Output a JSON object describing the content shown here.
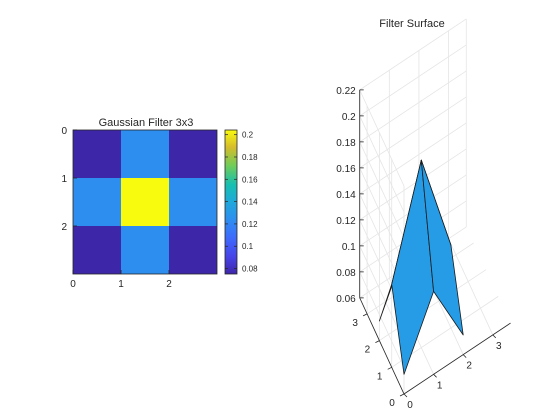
{
  "chart_data": [
    {
      "type": "heatmap",
      "title": "Gaussian Filter 3x3",
      "x_ticks": [
        "0",
        "1",
        "2"
      ],
      "y_ticks": [
        "0",
        "1",
        "2"
      ],
      "values": [
        [
          0.0751,
          0.1238,
          0.0751
        ],
        [
          0.1238,
          0.2042,
          0.1238
        ],
        [
          0.0751,
          0.1238,
          0.0751
        ]
      ],
      "colormap": "parula",
      "clim": [
        0.0751,
        0.2042
      ],
      "colorbar_ticks": [
        "0.08",
        "0.1",
        "0.12",
        "0.14",
        "0.16",
        "0.18",
        "0.2"
      ],
      "colorbar_tick_values": [
        0.08,
        0.1,
        0.12,
        0.14,
        0.16,
        0.18,
        0.2
      ],
      "colors": {
        "low": "#3e26a8",
        "mid": "#1fa3e1",
        "high": "#f9fb0e"
      }
    },
    {
      "type": "surface",
      "title": "Filter Surface",
      "z_ticks": [
        "0.06",
        "0.08",
        "0.1",
        "0.12",
        "0.14",
        "0.16",
        "0.18",
        "0.2",
        "0.22"
      ],
      "z_tick_values": [
        0.06,
        0.08,
        0.1,
        0.12,
        0.14,
        0.16,
        0.18,
        0.2,
        0.22
      ],
      "x_ticks": [
        "0",
        "1",
        "2",
        "3"
      ],
      "y_ticks": [
        "0",
        "1",
        "2",
        "3"
      ],
      "zlim": [
        0.06,
        0.22
      ],
      "grid": true
    }
  ]
}
